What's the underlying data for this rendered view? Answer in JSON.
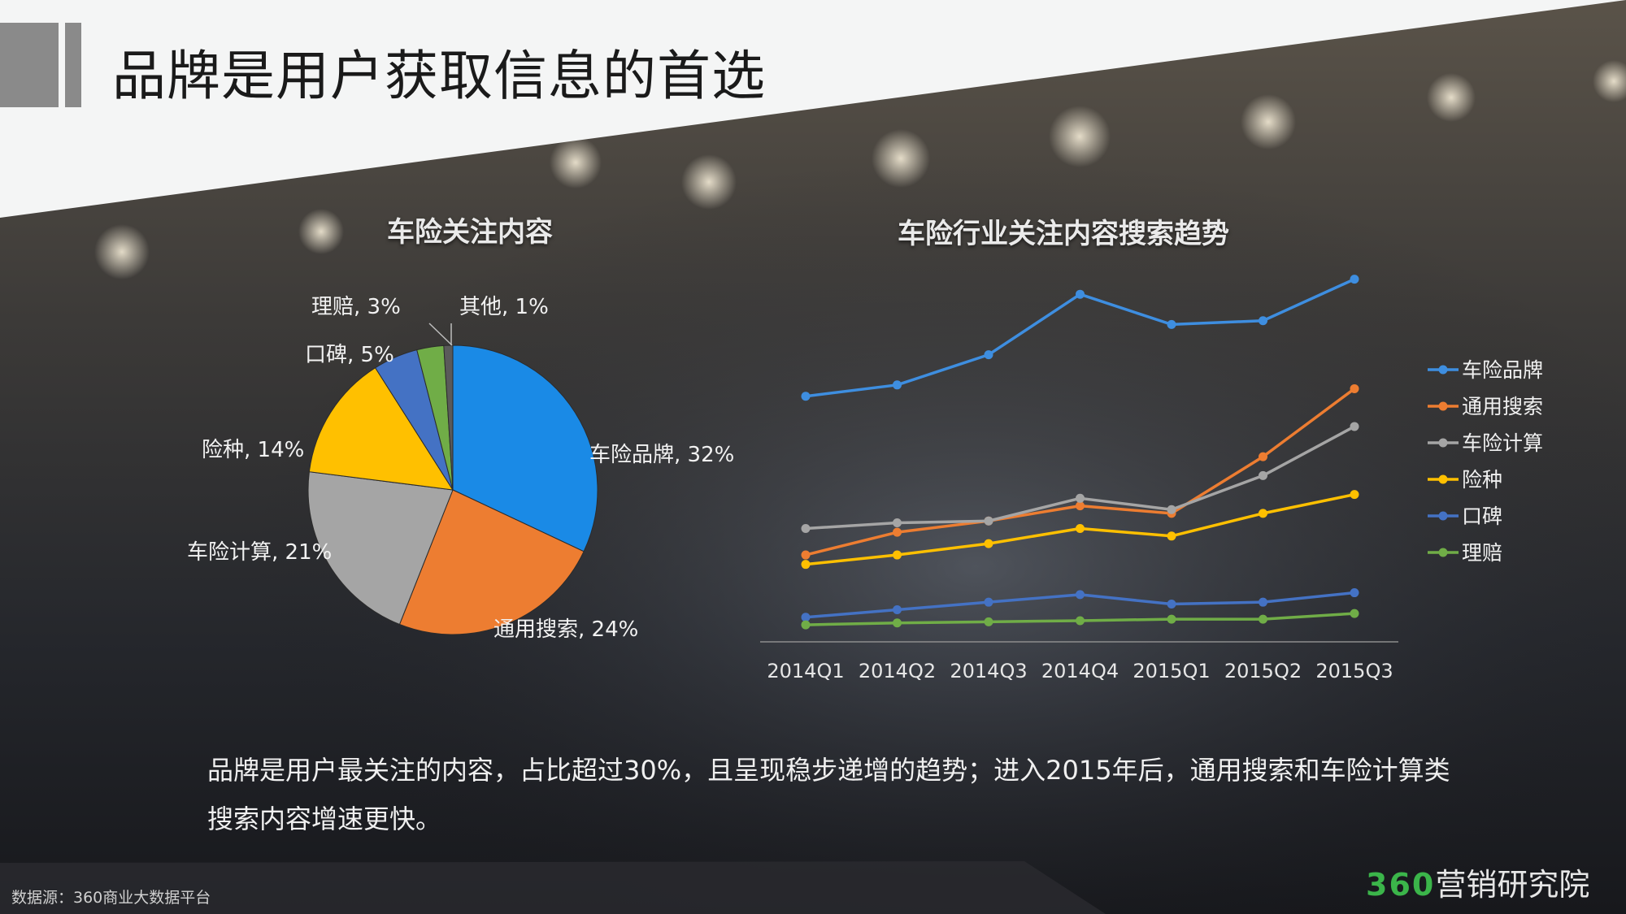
{
  "page": {
    "title": "品牌是用户获取信息的首选",
    "summary_line1": "品牌是用户最关注的内容，占比超过30%，且呈现稳步递增的趋势；进入2015年后，通用搜索和车险计算类",
    "summary_line2": "搜索内容增速更快。",
    "source": "数据源：360商业大数据平台",
    "brand_number": "360",
    "brand_name": "营销研究院"
  },
  "colors": {
    "blue": "#1a8ae6",
    "orange": "#ed7d31",
    "gray": "#a5a5a5",
    "yellow": "#ffc000",
    "navy": "#4472c4",
    "green": "#70ad47",
    "line_blue": "#3e8ee0"
  },
  "chart_data": [
    {
      "type": "pie",
      "title": "车险关注内容",
      "slices": [
        {
          "label": "车险品牌",
          "value": 32,
          "label_text": "车险品牌, 32%",
          "color": "#1a8ae6"
        },
        {
          "label": "通用搜索",
          "value": 24,
          "label_text": "通用搜索, 24%",
          "color": "#ed7d31"
        },
        {
          "label": "车险计算",
          "value": 21,
          "label_text": "车险计算, 21%",
          "color": "#a5a5a5"
        },
        {
          "label": "险种",
          "value": 14,
          "label_text": "险种, 14%",
          "color": "#ffc000"
        },
        {
          "label": "口碑",
          "value": 5,
          "label_text": "口碑, 5%",
          "color": "#4472c4"
        },
        {
          "label": "理赔",
          "value": 3,
          "label_text": "理赔, 3%",
          "color": "#70ad47"
        },
        {
          "label": "其他",
          "value": 1,
          "label_text": "其他, 1%",
          "color": "#5a5a5a"
        }
      ]
    },
    {
      "type": "line",
      "title": "车险行业关注内容搜索趋势",
      "categories": [
        "2014Q1",
        "2014Q2",
        "2014Q3",
        "2014Q4",
        "2015Q1",
        "2015Q2",
        "2015Q3"
      ],
      "legend_position": "right",
      "ylim": [
        0,
        100
      ],
      "series": [
        {
          "name": "车险品牌",
          "color": "#3e8ee0",
          "values": [
            65,
            68,
            76,
            92,
            84,
            85,
            96
          ]
        },
        {
          "name": "通用搜索",
          "color": "#ed7d31",
          "values": [
            23,
            29,
            32,
            36,
            34,
            49,
            67
          ]
        },
        {
          "name": "车险计算",
          "color": "#a5a5a5",
          "values": [
            30,
            31.5,
            32,
            38,
            35,
            44,
            57
          ]
        },
        {
          "name": "险种",
          "color": "#ffc000",
          "values": [
            20.5,
            23,
            26,
            30,
            28,
            34,
            39
          ]
        },
        {
          "name": "口碑",
          "color": "#4472c4",
          "values": [
            6.5,
            8.5,
            10.5,
            12.5,
            10,
            10.5,
            13
          ]
        },
        {
          "name": "理赔",
          "color": "#70ad47",
          "values": [
            4.5,
            5,
            5.3,
            5.6,
            6,
            6,
            7.5
          ]
        }
      ]
    }
  ]
}
